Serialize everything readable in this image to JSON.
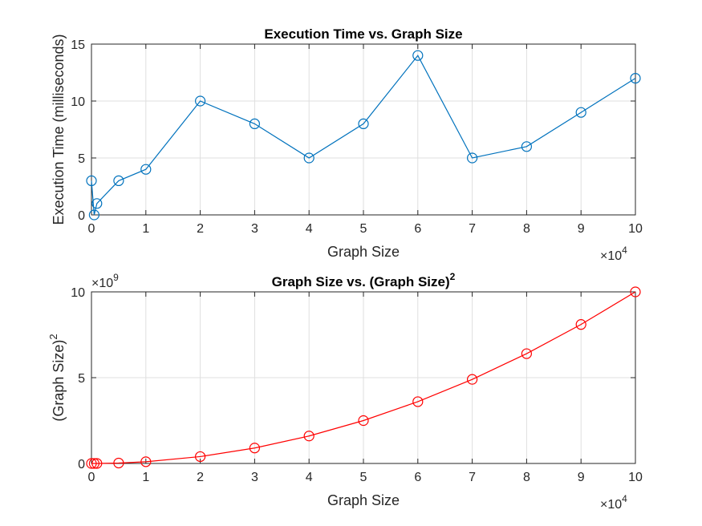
{
  "chart_data": [
    {
      "type": "line",
      "title": "Execution Time vs. Graph Size",
      "xlabel": "Graph Size",
      "ylabel": "Execution Time (milliseconds)",
      "x_multiplier_label": "×10",
      "x_multiplier_exponent": "4",
      "xlim": [
        0,
        100000
      ],
      "ylim": [
        0,
        15
      ],
      "xticks": [
        0,
        10000,
        20000,
        30000,
        40000,
        50000,
        60000,
        70000,
        80000,
        90000,
        100000
      ],
      "xtick_labels": [
        "0",
        "1",
        "2",
        "3",
        "4",
        "5",
        "6",
        "7",
        "8",
        "9",
        "10"
      ],
      "yticks": [
        0,
        5,
        10,
        15
      ],
      "ytick_labels": [
        "0",
        "5",
        "10",
        "15"
      ],
      "grid": true,
      "series": [
        {
          "color": "#0072BD",
          "marker": "circle",
          "x": [
            0,
            500,
            1000,
            5000,
            10000,
            20000,
            30000,
            40000,
            50000,
            60000,
            70000,
            80000,
            90000,
            100000
          ],
          "y": [
            3,
            0,
            1,
            3,
            4,
            10,
            8,
            5,
            8,
            14,
            5,
            6,
            9,
            12
          ]
        }
      ]
    },
    {
      "type": "line",
      "title": "Graph Size vs. (Graph Size)",
      "title_superscript": "2",
      "xlabel": "Graph Size",
      "ylabel": "(Graph Size)",
      "ylabel_superscript": "2",
      "x_multiplier_label": "×10",
      "x_multiplier_exponent": "4",
      "y_multiplier_label": "×10",
      "y_multiplier_exponent": "9",
      "xlim": [
        0,
        100000
      ],
      "ylim": [
        0,
        10000000000
      ],
      "xticks": [
        0,
        10000,
        20000,
        30000,
        40000,
        50000,
        60000,
        70000,
        80000,
        90000,
        100000
      ],
      "xtick_labels": [
        "0",
        "1",
        "2",
        "3",
        "4",
        "5",
        "6",
        "7",
        "8",
        "9",
        "10"
      ],
      "yticks": [
        0,
        5000000000,
        10000000000
      ],
      "ytick_labels": [
        "0",
        "5",
        "10"
      ],
      "grid": true,
      "series": [
        {
          "color": "#FF0000",
          "marker": "circle",
          "x": [
            0,
            500,
            1000,
            5000,
            10000,
            20000,
            30000,
            40000,
            50000,
            60000,
            70000,
            80000,
            90000,
            100000
          ],
          "y": [
            0,
            250000,
            1000000,
            25000000,
            100000000,
            400000000,
            900000000,
            1600000000,
            2500000000,
            3600000000,
            4900000000,
            6400000000,
            8100000000,
            10000000000
          ]
        }
      ]
    }
  ]
}
